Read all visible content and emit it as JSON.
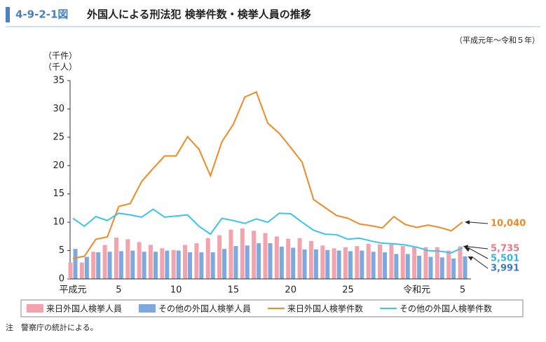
{
  "chart_data": {
    "type": "bar_line",
    "figure_number": "4-9-2-1図",
    "title": "外国人による刑法犯 検挙件数・検挙人員の推移",
    "subtitle": "（平成元年～令和５年）",
    "y_label_1": "（千件）",
    "y_label_2": "（千人）",
    "note": "注　警察庁の統計による。",
    "categories": [
      "平成元",
      null,
      null,
      null,
      "5",
      null,
      null,
      null,
      null,
      "10",
      null,
      null,
      null,
      null,
      "15",
      null,
      null,
      null,
      null,
      "20",
      null,
      null,
      null,
      null,
      "25",
      null,
      null,
      null,
      null,
      null,
      "令和元",
      null,
      null,
      null,
      "5"
    ],
    "ylim": [
      0,
      35
    ],
    "yticks": [
      0,
      5,
      10,
      15,
      20,
      25,
      30,
      35
    ],
    "grid": false,
    "series": [
      {
        "name": "来日外国人検挙人員",
        "type": "bar",
        "color": "#f4a3ad",
        "label_color": "#e8788a",
        "values": [
          2.9,
          2.9,
          4.8,
          6.0,
          7.3,
          7.0,
          6.5,
          6.0,
          5.4,
          5.1,
          6.0,
          6.3,
          7.2,
          7.7,
          8.7,
          8.9,
          8.5,
          8.1,
          7.5,
          7.1,
          7.2,
          6.7,
          5.9,
          5.4,
          5.6,
          5.8,
          6.2,
          6.1,
          6.1,
          5.8,
          5.6,
          5.6,
          5.6,
          5.0,
          5.735
        ],
        "value_labels": [
          null,
          null,
          null,
          null,
          null,
          null,
          null,
          null,
          null,
          null,
          null,
          null,
          null,
          null,
          null,
          null,
          null,
          null,
          null,
          null,
          null,
          null,
          null,
          null,
          null,
          null,
          null,
          null,
          null,
          null,
          null,
          null,
          null,
          null,
          "5,735"
        ]
      },
      {
        "name": "その他の外国人検挙人員",
        "type": "bar",
        "color": "#7ea9de",
        "label_color": "#3a78c8",
        "values": [
          5.3,
          3.9,
          4.7,
          4.8,
          4.9,
          5.0,
          4.8,
          4.8,
          5.0,
          5.0,
          4.7,
          4.7,
          4.7,
          5.3,
          5.8,
          5.9,
          6.3,
          6.3,
          5.7,
          5.5,
          5.2,
          5.2,
          5.1,
          5.0,
          4.9,
          5.0,
          4.8,
          4.7,
          4.4,
          4.4,
          4.1,
          3.9,
          3.8,
          3.6,
          3.991
        ],
        "value_labels": [
          null,
          null,
          null,
          null,
          null,
          null,
          null,
          null,
          null,
          null,
          null,
          null,
          null,
          null,
          null,
          null,
          null,
          null,
          null,
          null,
          null,
          null,
          null,
          null,
          null,
          null,
          null,
          null,
          null,
          null,
          null,
          null,
          null,
          null,
          "3,991"
        ]
      },
      {
        "name": "来日外国人検挙件数",
        "type": "line",
        "color": "#f08a24",
        "label_color": "#f08a24",
        "values": [
          3.6,
          4.0,
          7.0,
          7.4,
          12.8,
          13.3,
          17.2,
          19.5,
          21.7,
          21.7,
          25.1,
          22.9,
          18.2,
          24.2,
          27.3,
          32.1,
          33.0,
          27.5,
          25.7,
          23.2,
          20.6,
          14.0,
          12.6,
          11.2,
          10.7,
          9.7,
          9.4,
          9.0,
          11.0,
          9.6,
          9.1,
          9.5,
          9.1,
          8.5,
          10.04
        ],
        "value_labels": [
          null,
          null,
          null,
          null,
          null,
          null,
          null,
          null,
          null,
          null,
          null,
          null,
          null,
          null,
          null,
          null,
          null,
          null,
          null,
          null,
          null,
          null,
          null,
          null,
          null,
          null,
          null,
          null,
          null,
          null,
          null,
          null,
          null,
          null,
          "10,040"
        ]
      },
      {
        "name": "その他の外国人検挙件数",
        "type": "line",
        "color": "#3cc3ee",
        "label_color": "#2fb5e6",
        "values": [
          10.7,
          9.3,
          11.0,
          10.3,
          11.6,
          11.3,
          10.9,
          12.3,
          10.9,
          11.1,
          11.3,
          9.3,
          7.9,
          10.7,
          10.3,
          9.8,
          10.6,
          10.0,
          11.6,
          11.5,
          10.0,
          8.6,
          7.9,
          7.8,
          7.0,
          7.2,
          6.7,
          6.3,
          6.2,
          6.0,
          5.6,
          5.0,
          4.9,
          4.6,
          5.501
        ],
        "value_labels": [
          null,
          null,
          null,
          null,
          null,
          null,
          null,
          null,
          null,
          null,
          null,
          null,
          null,
          null,
          null,
          null,
          null,
          null,
          null,
          null,
          null,
          null,
          null,
          null,
          null,
          null,
          null,
          null,
          null,
          null,
          null,
          null,
          null,
          null,
          "5,501"
        ]
      }
    ]
  }
}
